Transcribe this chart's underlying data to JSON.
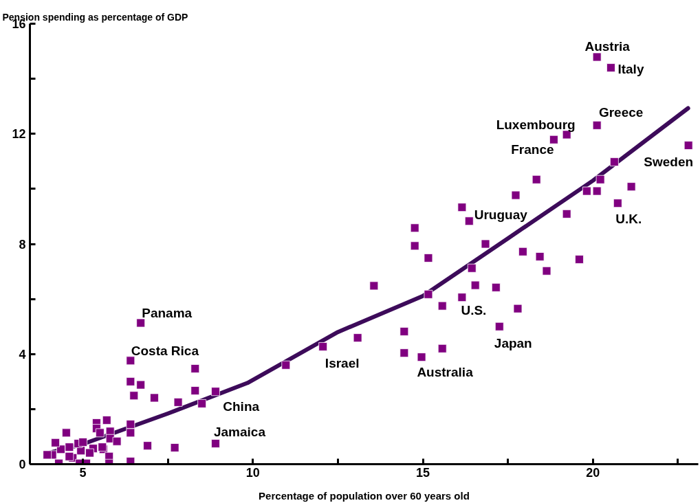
{
  "chart_data": {
    "type": "scatter",
    "xlabel": "Percentage of population over 60 years old",
    "ylabel": "Pension spending as percentage of GDP",
    "xlim": [
      3.44,
      23.1
    ],
    "ylim": [
      0,
      16
    ],
    "xticks": [
      5,
      {
        "value": 7.5,
        "label": null
      },
      10,
      {
        "value": 12.5,
        "label": null
      },
      15,
      {
        "value": 17.5,
        "label": null
      },
      20,
      {
        "value": 22.5,
        "label": null
      }
    ],
    "yticks": [
      0,
      {
        "value": 2,
        "label": null
      },
      4,
      {
        "value": 6,
        "label": null
      },
      8,
      {
        "value": 10,
        "label": null
      },
      12,
      {
        "value": 14,
        "label": null
      },
      16
    ],
    "grid": false,
    "marker": "square",
    "series": [
      {
        "color": "#800080",
        "x": [
          6.7,
          6.4,
          6.4,
          6.7,
          6.5,
          7.1,
          8.3,
          8.3,
          8.9,
          7.8,
          8.5,
          8.9,
          7.7,
          6.9,
          6.4,
          6.4,
          6.4,
          5.4,
          5.4,
          5.7,
          5.5,
          5.8,
          5.8,
          6.0,
          5.6,
          5.3,
          5.2,
          4.94,
          4.86,
          4.6,
          4.35,
          4.19,
          4.1,
          3.95,
          4.29,
          4.7,
          4.9,
          5.1,
          5.77,
          5.77,
          5.57,
          4.51,
          5.0,
          4.6,
          10.97,
          12.06,
          13.08,
          13.56,
          14.45,
          14.45,
          14.96,
          15.57,
          14.76,
          14.76,
          15.16,
          15.16,
          15.57,
          16.15,
          16.36,
          16.84,
          16.44,
          16.54,
          17.15,
          16.15,
          17.25,
          17.79,
          20.12,
          20.53,
          20.12,
          19.23,
          18.85,
          22.81,
          20.63,
          20.22,
          19.82,
          20.12,
          21.13,
          20.73,
          18.34,
          17.73,
          19.23,
          17.94,
          18.44,
          19.6,
          18.64
        ],
        "values": [
          5.13,
          3.76,
          3.0,
          2.88,
          2.49,
          2.41,
          3.47,
          2.67,
          2.64,
          2.25,
          2.2,
          0.75,
          0.6,
          0.67,
          1.45,
          1.14,
          0.1,
          1.5,
          1.3,
          1.6,
          1.14,
          1.19,
          0.93,
          0.83,
          0.54,
          0.57,
          0.41,
          0.49,
          0.75,
          0.62,
          0.54,
          0.78,
          0.34,
          0.34,
          0.03,
          0.23,
          0.03,
          0.03,
          0.28,
          0.03,
          0.62,
          1.14,
          0.8,
          0.28,
          3.6,
          4.27,
          4.59,
          6.48,
          4.82,
          4.04,
          3.89,
          4.2,
          8.58,
          7.93,
          7.49,
          6.17,
          5.75,
          9.33,
          8.83,
          8.0,
          7.12,
          6.5,
          6.42,
          6.06,
          5.0,
          5.65,
          14.79,
          14.4,
          12.31,
          11.97,
          11.79,
          11.58,
          10.98,
          10.34,
          9.92,
          9.92,
          10.08,
          9.48,
          10.34,
          9.77,
          9.09,
          7.72,
          7.54,
          7.44,
          7.02
        ]
      },
      {
        "type": "line",
        "marker": "none",
        "color": "#3d0b5a",
        "x": [
          3.99,
          5,
          7.5,
          9.84,
          12.5,
          15,
          17.5,
          20,
          22.8
        ],
        "values": [
          0.41,
          0.73,
          1.84,
          2.95,
          4.8,
          6.11,
          8.2,
          10.3,
          12.93
        ]
      }
    ],
    "annotations": [
      {
        "text": "Panama",
        "x": 6.7,
        "y": 5.13
      },
      {
        "text": "Costa Rica",
        "x": 6.4,
        "y": 3.76
      },
      {
        "text": "China",
        "x": 8.5,
        "y": 2.2
      },
      {
        "text": "Jamaica",
        "x": 8.9,
        "y": 0.75
      },
      {
        "text": "Israel",
        "x": 12.06,
        "y": 4.27
      },
      {
        "text": "Australia",
        "x": 14.96,
        "y": 3.89
      },
      {
        "text": "U.S.",
        "x": 16.15,
        "y": 6.06
      },
      {
        "text": "Japan",
        "x": 17.25,
        "y": 5.0
      },
      {
        "text": "Uruguay",
        "x": 16.36,
        "y": 8.83
      },
      {
        "text": "France",
        "x": 18.85,
        "y": 11.79
      },
      {
        "text": "Luxembourg",
        "x": 19.23,
        "y": 11.97
      },
      {
        "text": "Greece",
        "x": 20.12,
        "y": 12.31
      },
      {
        "text": "Austria",
        "x": 20.12,
        "y": 14.79
      },
      {
        "text": "Italy",
        "x": 20.53,
        "y": 14.4
      },
      {
        "text": "Sweden",
        "x": 22.81,
        "y": 11.58
      },
      {
        "text": "U.K.",
        "x": 20.73,
        "y": 9.48
      }
    ]
  }
}
